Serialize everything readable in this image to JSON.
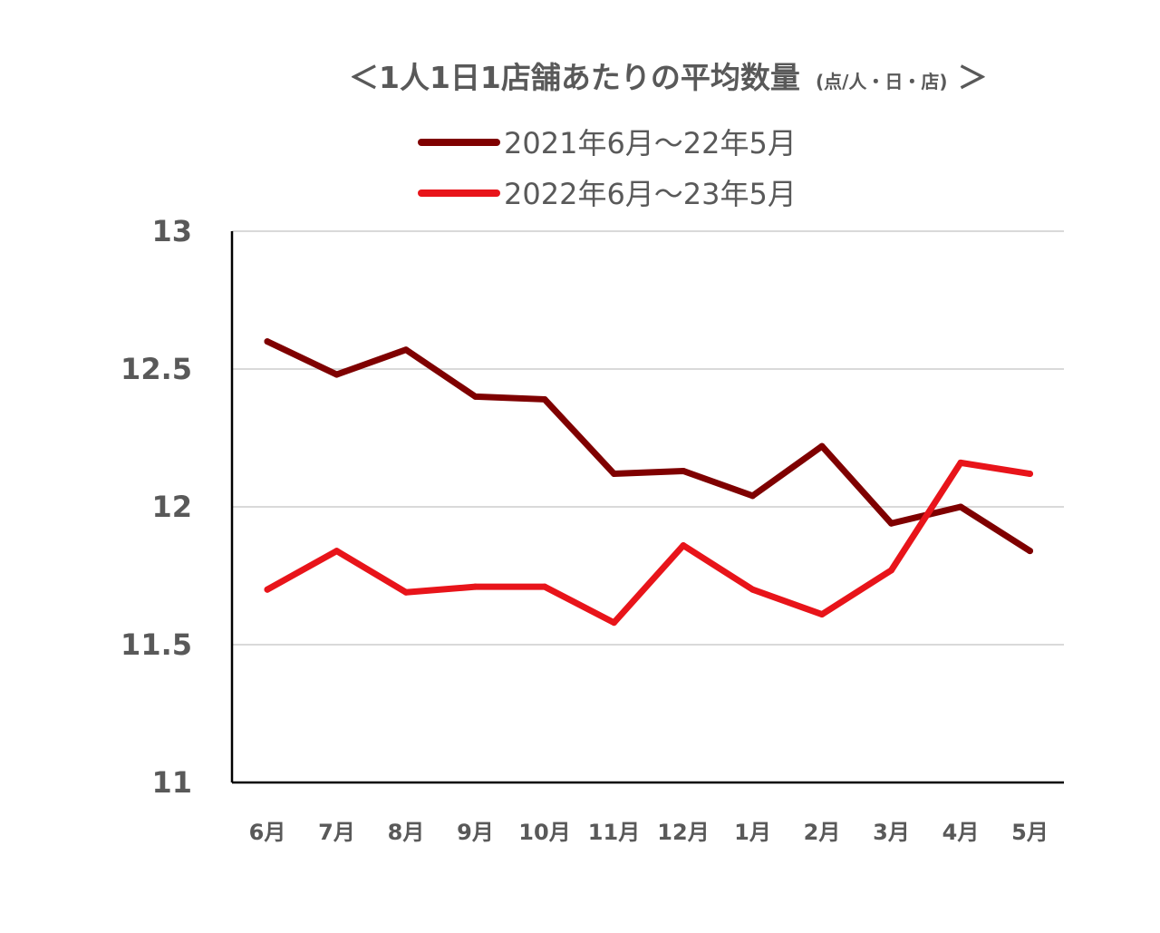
{
  "chart_data": {
    "type": "line",
    "title": "＜1人1日1店舗あたりの平均数量",
    "title_unit": "(点/人・日・店)",
    "title_close": "＞",
    "categories": [
      "6月",
      "7月",
      "8月",
      "9月",
      "10月",
      "11月",
      "12月",
      "1月",
      "2月",
      "3月",
      "4月",
      "5月"
    ],
    "series": [
      {
        "name": "2021年6月〜22年5月",
        "color": "#7f0000",
        "values": [
          12.6,
          12.48,
          12.57,
          12.4,
          12.39,
          12.12,
          12.13,
          12.04,
          12.22,
          11.94,
          12.0,
          11.84
        ]
      },
      {
        "name": "2022年6月〜23年5月",
        "color": "#e8141a",
        "values": [
          11.7,
          11.84,
          11.69,
          11.71,
          11.71,
          11.58,
          11.86,
          11.7,
          11.61,
          11.77,
          12.16,
          12.12
        ]
      }
    ],
    "yticks": [
      "11",
      "11.5",
      "12",
      "12.5",
      "13"
    ],
    "ylim": [
      11,
      13
    ],
    "xlabel": "",
    "ylabel": "",
    "grid": true,
    "legend_position": "top"
  }
}
